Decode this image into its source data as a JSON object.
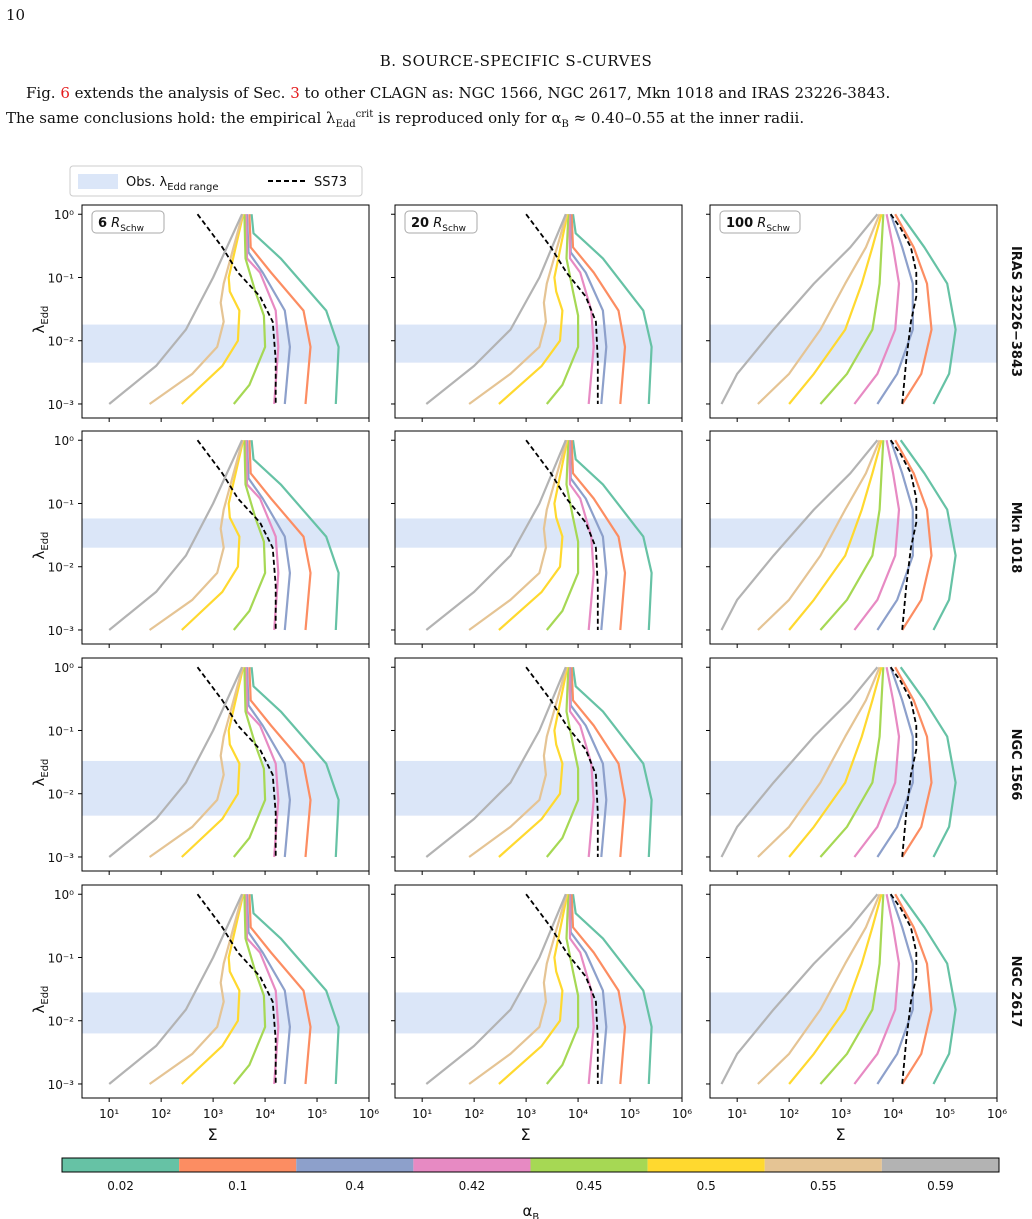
{
  "page": {
    "number": "10",
    "section_heading": "B. SOURCE-SPECIFIC S-CURVES",
    "paragraph": {
      "line1_a": "Fig. ",
      "fig_ref": "6",
      "line1_b": " extends the analysis of Sec. ",
      "sec_ref": "3",
      "line1_c": " to other CLAGN as: NGC 1566, NGC 2617, Mkn 1018 and IRAS 23226-3843.",
      "line2_a": "The same conclusions hold: the empirical λ",
      "line2_sub": "Edd",
      "line2_sup": "crit",
      "line2_b": " is reproduced only for α",
      "line2_sub2": "B",
      "line2_c": " ≈ 0.40–0.55 at the inner radii."
    }
  },
  "colors": {
    "0.02": "#66c2a5",
    "0.1": "#fc8d62",
    "0.4": "#8da0cb",
    "0.42": "#e78ac3",
    "0.45": "#a6d854",
    "0.5": "#ffd92f",
    "0.55": "#e5c494",
    "0.59": "#b3b3b3",
    "band": "#dbe6f8",
    "ss73": "#000000"
  },
  "chart_data": {
    "type": "line",
    "legend": {
      "band_label": "Obs. λ_Edd range",
      "ss73_label": "SS73",
      "placement": "top-left"
    },
    "xlabel": "Σ",
    "ylabel": "λ_Edd",
    "xscale": "log",
    "yscale": "log",
    "xlim": [
      3,
      1000000
    ],
    "ylim": [
      0.0006,
      1.4
    ],
    "x_ticks": [
      "10¹",
      "10²",
      "10³",
      "10⁴",
      "10⁵",
      "10⁶"
    ],
    "y_ticks": [
      "10⁰",
      "10⁻¹",
      "10⁻²",
      "10⁻³"
    ],
    "columns": [
      {
        "label_bold": "6",
        "label_rest": " R",
        "label_sub": "Schw"
      },
      {
        "label_bold": "20",
        "label_rest": " R",
        "label_sub": "Schw"
      },
      {
        "label_bold": "100",
        "label_rest": " R",
        "label_sub": "Schw"
      }
    ],
    "rows": [
      {
        "name": "IRAS 23226−3843",
        "band": [
          0.0045,
          0.018
        ]
      },
      {
        "name": "Mkn 1018",
        "band": [
          0.02,
          0.058
        ]
      },
      {
        "name": "NGC 1566",
        "band": [
          0.0045,
          0.033
        ]
      },
      {
        "name": "NGC 2617",
        "band": [
          0.0063,
          0.028
        ]
      }
    ],
    "colorbar": {
      "label": "α_B",
      "alphas": [
        "0.02",
        "0.1",
        "0.4",
        "0.42",
        "0.45",
        "0.5",
        "0.55",
        "0.59"
      ]
    },
    "series_col1": [
      {
        "alpha": "0.02",
        "x": [
          5500,
          6000,
          20000,
          150000,
          260000,
          230000
        ],
        "y": [
          1,
          0.5,
          0.2,
          0.03,
          0.008,
          0.001
        ]
      },
      {
        "alpha": "0.1",
        "x": [
          5000,
          5300,
          13000,
          55000,
          75000,
          60000
        ],
        "y": [
          1,
          0.3,
          0.12,
          0.03,
          0.008,
          0.001
        ]
      },
      {
        "alpha": "0.4",
        "x": [
          4500,
          4800,
          9000,
          24000,
          30000,
          24000
        ],
        "y": [
          1,
          0.25,
          0.12,
          0.03,
          0.008,
          0.001
        ]
      },
      {
        "alpha": "0.42",
        "x": [
          4300,
          4500,
          8000,
          16000,
          18000,
          15000
        ],
        "y": [
          1,
          0.2,
          0.12,
          0.03,
          0.008,
          0.001
        ]
      },
      {
        "alpha": "0.45",
        "x": [
          4000,
          4200,
          6500,
          9500,
          10000,
          5000,
          2500
        ],
        "y": [
          1,
          0.2,
          0.06,
          0.025,
          0.008,
          0.002,
          0.001
        ]
      },
      {
        "alpha": "0.5",
        "x": [
          3800,
          2000,
          2100,
          3200,
          3000,
          1500,
          250
        ],
        "y": [
          1,
          0.1,
          0.06,
          0.03,
          0.01,
          0.004,
          0.001
        ]
      },
      {
        "alpha": "0.55",
        "x": [
          3700,
          1600,
          1400,
          1600,
          1200,
          400,
          60
        ],
        "y": [
          1,
          0.08,
          0.04,
          0.02,
          0.008,
          0.003,
          0.001
        ]
      },
      {
        "alpha": "0.59",
        "x": [
          3600,
          1000,
          300,
          80,
          10
        ],
        "y": [
          1,
          0.1,
          0.015,
          0.004,
          0.001
        ]
      }
    ],
    "series_col2": [
      {
        "alpha": "0.02",
        "x": [
          8000,
          9000,
          30000,
          180000,
          260000,
          230000
        ],
        "y": [
          1,
          0.5,
          0.2,
          0.03,
          0.008,
          0.001
        ]
      },
      {
        "alpha": "0.1",
        "x": [
          7500,
          8000,
          20000,
          60000,
          80000,
          65000
        ],
        "y": [
          1,
          0.3,
          0.12,
          0.03,
          0.008,
          0.001
        ]
      },
      {
        "alpha": "0.4",
        "x": [
          7000,
          7200,
          14000,
          30000,
          35000,
          28000
        ],
        "y": [
          1,
          0.25,
          0.12,
          0.03,
          0.008,
          0.001
        ]
      },
      {
        "alpha": "0.42",
        "x": [
          6800,
          7000,
          11000,
          18000,
          20000,
          16000
        ],
        "y": [
          1,
          0.2,
          0.12,
          0.03,
          0.008,
          0.001
        ]
      },
      {
        "alpha": "0.45",
        "x": [
          6500,
          6000,
          8000,
          10000,
          10000,
          5000,
          2500
        ],
        "y": [
          1,
          0.2,
          0.06,
          0.025,
          0.008,
          0.002,
          0.001
        ]
      },
      {
        "alpha": "0.5",
        "x": [
          6200,
          3500,
          3800,
          5000,
          4500,
          2000,
          300
        ],
        "y": [
          1,
          0.1,
          0.06,
          0.03,
          0.01,
          0.004,
          0.001
        ]
      },
      {
        "alpha": "0.55",
        "x": [
          6000,
          2500,
          2200,
          2400,
          1800,
          500,
          80
        ],
        "y": [
          1,
          0.08,
          0.04,
          0.02,
          0.008,
          0.003,
          0.001
        ]
      },
      {
        "alpha": "0.59",
        "x": [
          5800,
          1800,
          500,
          100,
          12
        ],
        "y": [
          1,
          0.1,
          0.015,
          0.004,
          0.001
        ]
      }
    ],
    "series_col3": [
      {
        "alpha": "0.02",
        "x": [
          14000,
          40000,
          110000,
          160000,
          120000,
          60000
        ],
        "y": [
          1,
          0.3,
          0.08,
          0.015,
          0.003,
          0.001
        ]
      },
      {
        "alpha": "0.1",
        "x": [
          11000,
          25000,
          45000,
          55000,
          35000,
          15000
        ],
        "y": [
          1,
          0.3,
          0.08,
          0.015,
          0.003,
          0.001
        ]
      },
      {
        "alpha": "0.4",
        "x": [
          9000,
          15000,
          24000,
          24000,
          12000,
          5000
        ],
        "y": [
          1,
          0.3,
          0.08,
          0.015,
          0.003,
          0.001
        ]
      },
      {
        "alpha": "0.42",
        "x": [
          7500,
          10000,
          13000,
          11000,
          5000,
          1800
        ],
        "y": [
          1,
          0.3,
          0.08,
          0.015,
          0.003,
          0.001
        ]
      },
      {
        "alpha": "0.45",
        "x": [
          6500,
          6000,
          5500,
          4000,
          1300,
          400
        ],
        "y": [
          1,
          0.3,
          0.08,
          0.015,
          0.003,
          0.001
        ]
      },
      {
        "alpha": "0.5",
        "x": [
          6000,
          4000,
          2500,
          1200,
          300,
          100
        ],
        "y": [
          1,
          0.3,
          0.08,
          0.015,
          0.003,
          0.001
        ]
      },
      {
        "alpha": "0.55",
        "x": [
          5500,
          3000,
          1200,
          400,
          100,
          25
        ],
        "y": [
          1,
          0.3,
          0.08,
          0.015,
          0.003,
          0.001
        ]
      },
      {
        "alpha": "0.59",
        "x": [
          5000,
          1500,
          300,
          50,
          10,
          5
        ],
        "y": [
          1,
          0.3,
          0.08,
          0.015,
          0.003,
          0.001
        ]
      }
    ],
    "ss73": [
      {
        "x": [
          500,
          800,
          1500,
          3000,
          8000,
          14000,
          16000,
          16000
        ],
        "y": [
          1,
          0.6,
          0.3,
          0.12,
          0.05,
          0.02,
          0.005,
          0.001
        ]
      },
      {
        "x": [
          1000,
          1600,
          3000,
          6000,
          14000,
          22000,
          24000,
          24000
        ],
        "y": [
          1,
          0.6,
          0.3,
          0.12,
          0.05,
          0.02,
          0.005,
          0.001
        ]
      },
      {
        "x": [
          9000,
          14000,
          22000,
          28000,
          28000,
          22000,
          18000,
          15000
        ],
        "y": [
          1,
          0.6,
          0.3,
          0.12,
          0.05,
          0.02,
          0.005,
          0.001
        ]
      }
    ]
  }
}
